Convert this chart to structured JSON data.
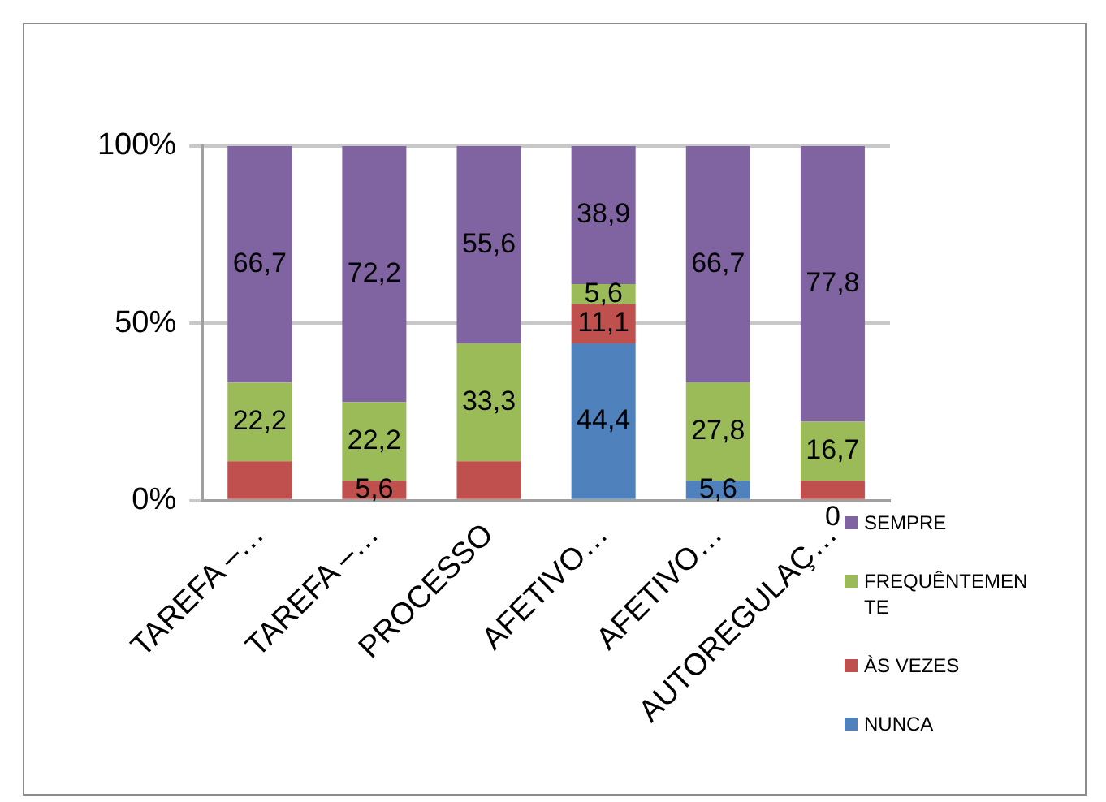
{
  "chart_data": {
    "type": "bar",
    "stacked": true,
    "categories": [
      "TAREFA –…",
      "TAREFA –…",
      "PROCESSO",
      "AFETIVO…",
      "AFETIVO…",
      "AUTOREGULAÇ…"
    ],
    "series": [
      {
        "name": "NUNCA",
        "color": "#4f81bd",
        "values": [
          0,
          0,
          0,
          44.4,
          5.6,
          0
        ],
        "value_labels": [
          null,
          null,
          null,
          "44,4",
          "5,6",
          null
        ]
      },
      {
        "name": "ÀS VEZES",
        "color": "#c0504d",
        "values": [
          11.1,
          5.6,
          11.1,
          11.1,
          0,
          5.6
        ],
        "value_labels": [
          null,
          "5,6",
          null,
          "11,1",
          null,
          null
        ]
      },
      {
        "name": "FREQUÊNTEMENTE",
        "color": "#9bbb59",
        "values": [
          22.2,
          22.2,
          33.3,
          5.6,
          27.8,
          16.7
        ],
        "value_labels": [
          "22,2",
          "22,2",
          "33,3",
          "5,6",
          "27,8",
          "16,7"
        ]
      },
      {
        "name": "SEMPRE",
        "color": "#8064a2",
        "values": [
          66.7,
          72.2,
          55.6,
          38.9,
          66.7,
          77.8
        ],
        "value_labels": [
          "66,7",
          "72,2",
          "55,6",
          "38,9",
          "66,7",
          "77,8"
        ]
      }
    ],
    "annotations": [
      {
        "text": "0",
        "x": "AUTOREGULAÇ…",
        "y": 0
      }
    ],
    "ylim": [
      0,
      100
    ],
    "yticks": [
      {
        "value": 0,
        "label": "0%"
      },
      {
        "value": 50,
        "label": "50%"
      },
      {
        "value": 100,
        "label": "100%"
      }
    ],
    "grid": "y",
    "legend": "bottom right"
  }
}
